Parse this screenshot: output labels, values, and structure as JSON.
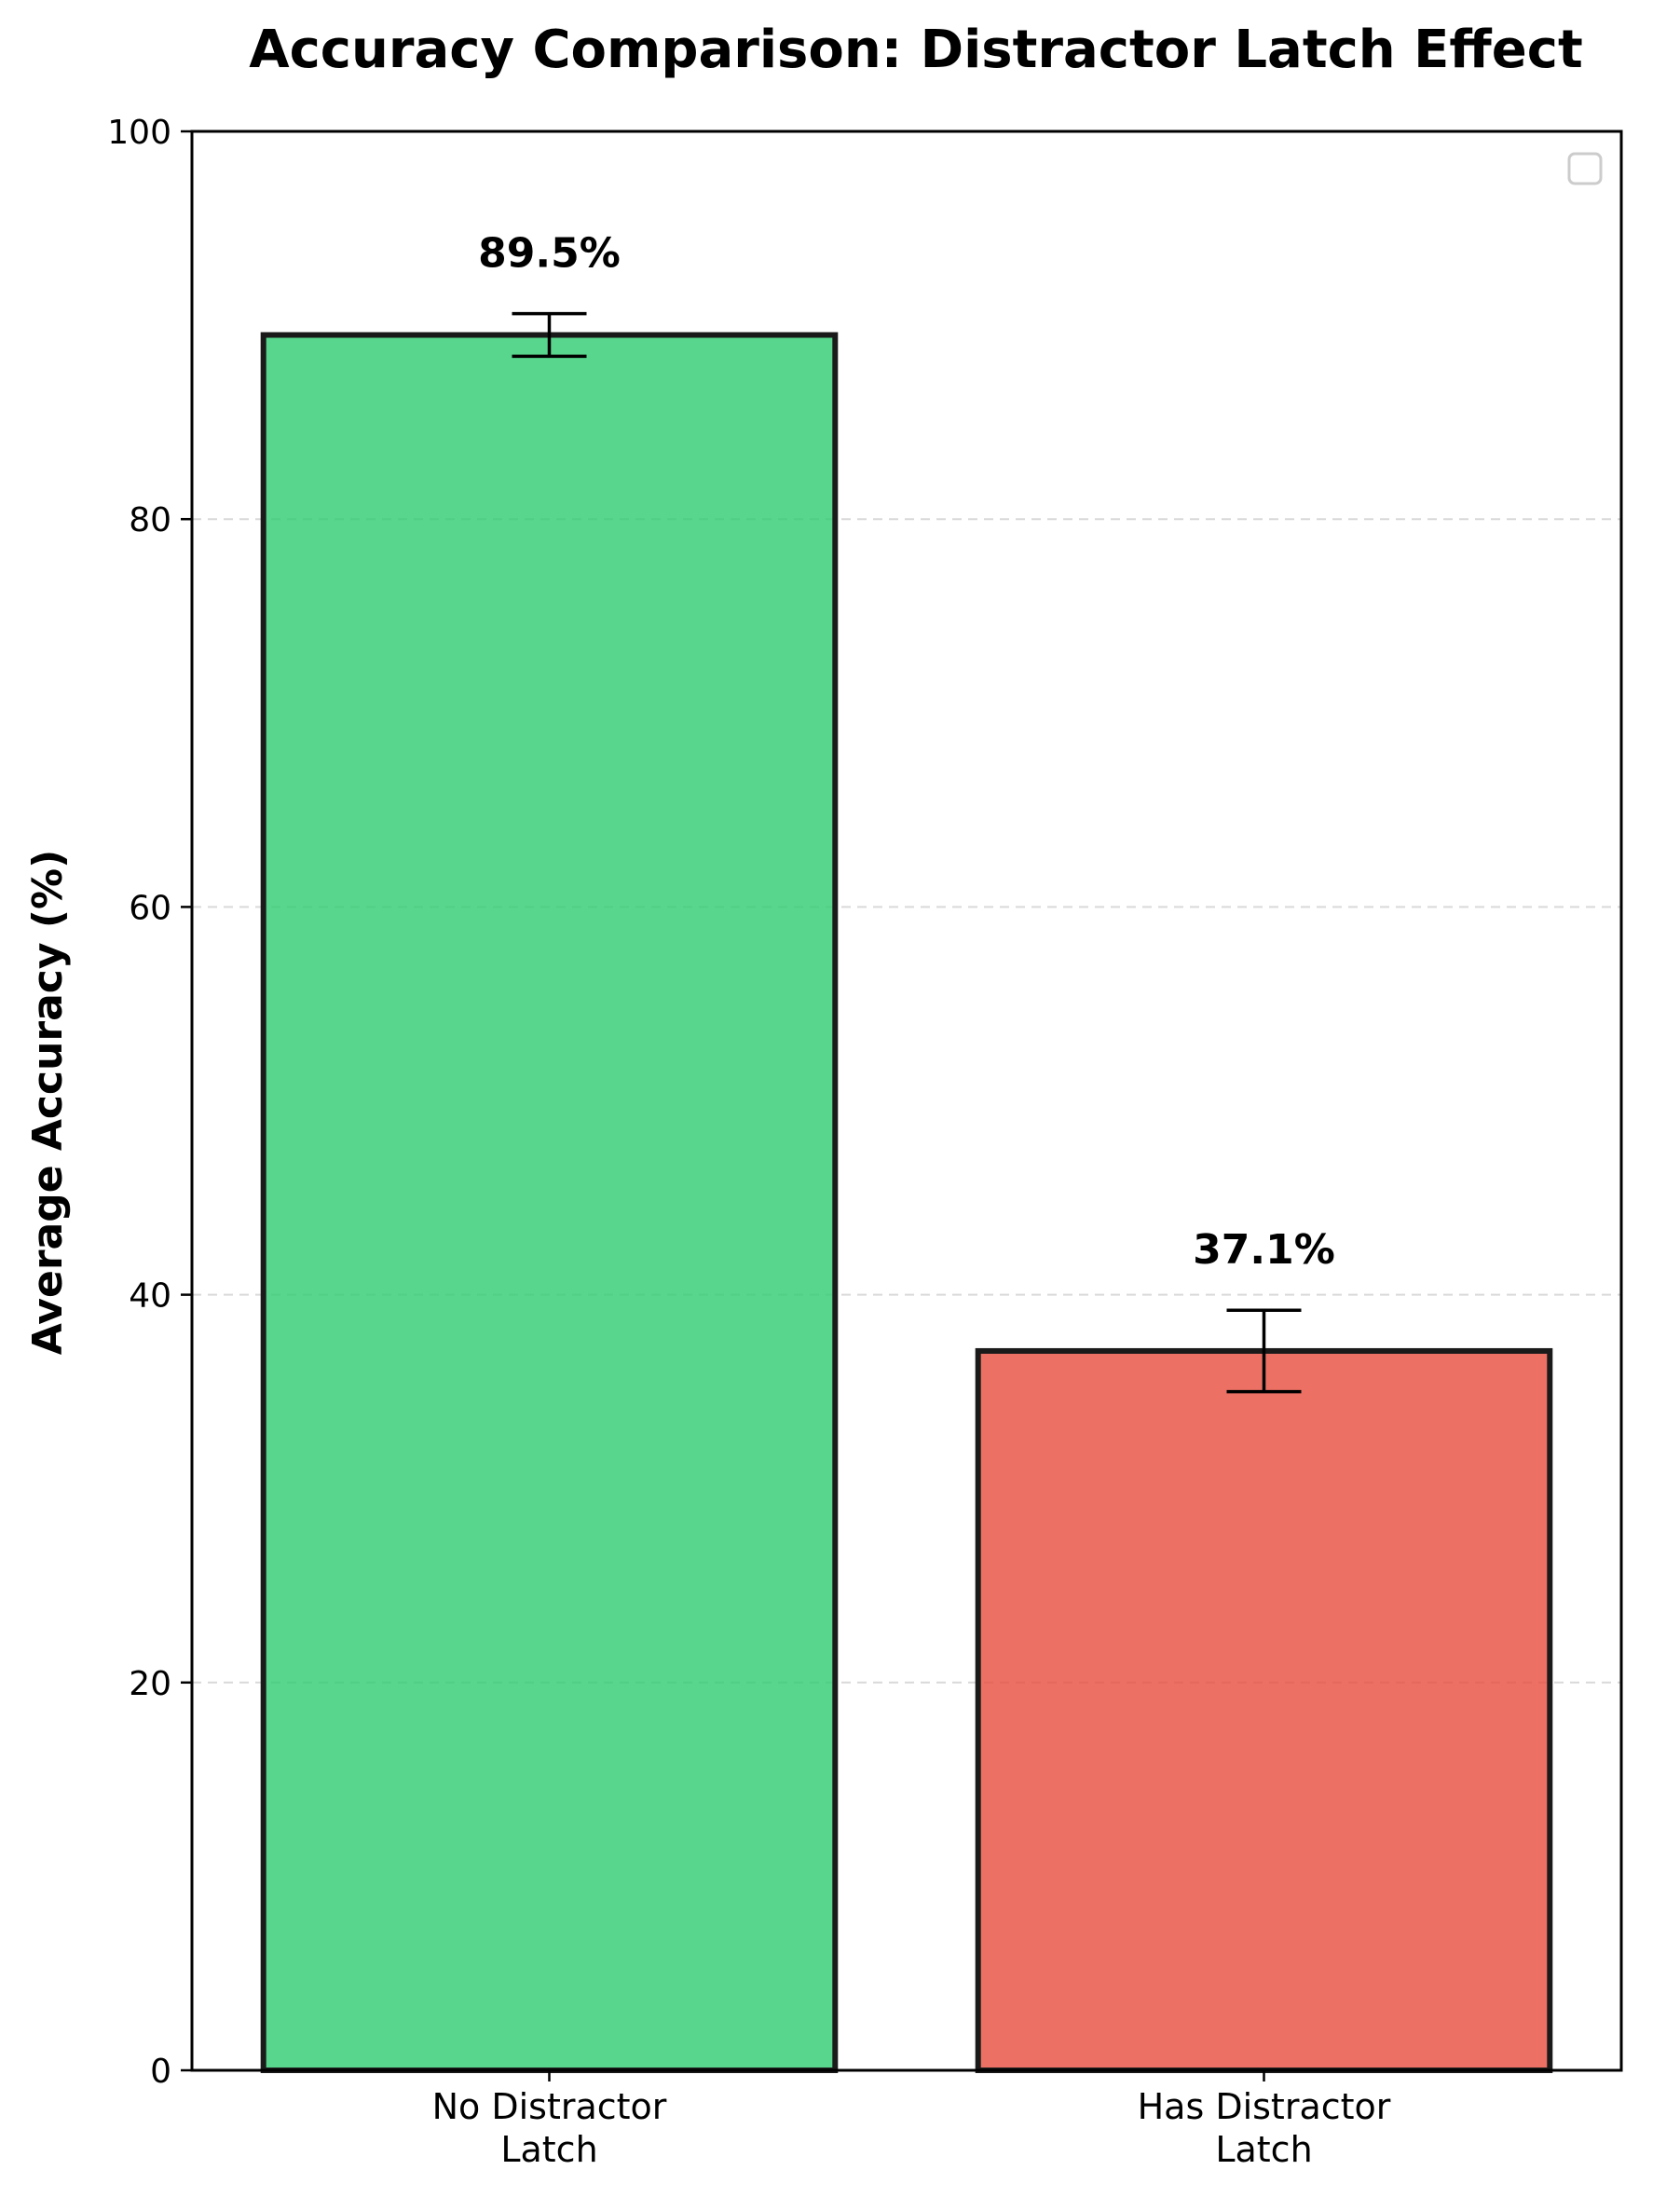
{
  "chart_data": {
    "type": "bar",
    "title": "Accuracy Comparison: Distractor Latch Effect",
    "xlabel": "",
    "ylabel": "Average Accuracy (%)",
    "ylim": [
      0,
      100
    ],
    "yticks": [
      0,
      20,
      40,
      60,
      80,
      100
    ],
    "categories": [
      [
        "No Distractor",
        "Latch"
      ],
      [
        "Has Distractor",
        "Latch"
      ]
    ],
    "values": [
      89.5,
      37.1
    ],
    "error": [
      1.1,
      2.1
    ],
    "data_labels": [
      "89.5%",
      "37.1%"
    ],
    "colors": [
      "#2ecc71",
      "#e74c3c"
    ],
    "bar_opacity": 0.8,
    "edge_color": "#1a1a1a",
    "grid": "y, dashed",
    "legend": "top-right, empty"
  }
}
